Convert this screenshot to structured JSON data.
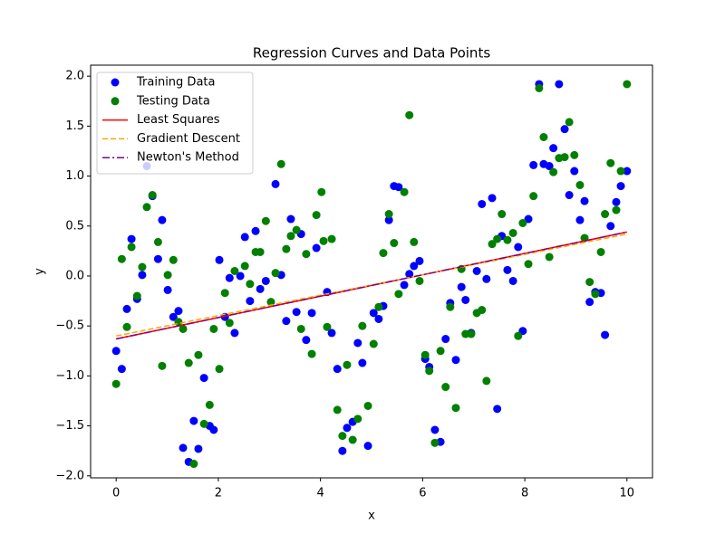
{
  "chart_data": {
    "type": "scatter",
    "title": "Regression Curves and Data Points",
    "x_label": "x",
    "y_label": "y",
    "xlim": [
      -0.5,
      10.5
    ],
    "ylim": [
      -2.02,
      2.11
    ],
    "xticks": [
      0,
      2,
      4,
      6,
      8,
      10
    ],
    "yticks": [
      {
        "value": -2,
        "label": "−2.0"
      },
      {
        "value": -1.5,
        "label": "−1.5"
      },
      {
        "value": -1,
        "label": "−1.0"
      },
      {
        "value": -0.5,
        "label": "−0.5"
      },
      {
        "value": 0,
        "label": "0.0"
      },
      {
        "value": 0.5,
        "label": "0.5"
      },
      {
        "value": 1,
        "label": "1.0"
      },
      {
        "value": 1.5,
        "label": "1.5"
      },
      {
        "value": 2,
        "label": "2.0"
      }
    ],
    "legend": "upper left",
    "series": [
      {
        "name": "Training Data",
        "color": "#0000ff",
        "style": "marker",
        "x": [
          0,
          0.11,
          0.21,
          0.3,
          0.41,
          0.51,
          0.6,
          0.71,
          0.82,
          0.9,
          1.01,
          1.12,
          1.22,
          1.31,
          1.42,
          1.52,
          1.61,
          1.72,
          1.83,
          1.91,
          2.02,
          2.13,
          2.22,
          2.32,
          2.43,
          2.52,
          2.62,
          2.73,
          2.82,
          2.93,
          3.12,
          3.23,
          3.33,
          3.42,
          3.53,
          3.62,
          3.72,
          3.83,
          3.92,
          4.13,
          4.22,
          4.33,
          4.43,
          4.52,
          4.63,
          4.73,
          4.82,
          4.93,
          5.04,
          5.14,
          5.23,
          5.34,
          5.44,
          5.53,
          5.64,
          5.74,
          5.83,
          5.94,
          6.05,
          6.13,
          6.24,
          6.35,
          6.45,
          6.54,
          6.65,
          6.76,
          6.84,
          6.95,
          7.06,
          7.16,
          7.25,
          7.36,
          7.46,
          7.55,
          7.66,
          7.77,
          7.87,
          7.96,
          8.07,
          8.17,
          8.28,
          8.37,
          8.48,
          8.56,
          8.67,
          8.78,
          8.87,
          8.97,
          9.08,
          9.17,
          9.27,
          9.38,
          9.49,
          9.57,
          9.68,
          9.79,
          9.88,
          10
        ],
        "values": [
          -0.75,
          -0.93,
          -0.33,
          0.37,
          -0.23,
          0.01,
          1.1,
          0.8,
          0.17,
          0.56,
          -0.14,
          -0.41,
          -0.35,
          -1.72,
          -1.86,
          -1.45,
          -1.73,
          -1.02,
          -1.5,
          -1.54,
          0.16,
          -0.41,
          -0.02,
          -0.57,
          0,
          0.39,
          -0.25,
          0.45,
          -0.13,
          -0.05,
          0.92,
          0.01,
          -0.45,
          0.57,
          -0.36,
          0.42,
          -0.64,
          -0.37,
          0.28,
          -0.16,
          -0.57,
          -0.93,
          -1.75,
          -1.52,
          -1.46,
          -0.67,
          -0.87,
          -1.7,
          -0.37,
          -0.43,
          -0.3,
          0.56,
          0.9,
          0.89,
          -0.09,
          0.02,
          0.1,
          0.15,
          -0.83,
          -0.91,
          -1.54,
          -1.66,
          -0.63,
          -0.27,
          -0.84,
          -0.11,
          -0.24,
          -0.57,
          0.05,
          0.72,
          -0.03,
          0.78,
          -1.33,
          0.4,
          0.06,
          -0.05,
          0.29,
          -0.55,
          0.57,
          1.11,
          1.92,
          1.12,
          1.1,
          1.28,
          1.92,
          1.47,
          0.81,
          1.05,
          0.56,
          0.75,
          -0.26,
          -0.16,
          -0.17,
          -0.59,
          0.5,
          0.74,
          0.9,
          1.05
        ]
      },
      {
        "name": "Testing Data",
        "color": "#008000",
        "style": "marker",
        "x": [
          0,
          0.11,
          0.21,
          0.3,
          0.41,
          0.51,
          0.6,
          0.71,
          0.82,
          0.9,
          1.01,
          1.12,
          1.22,
          1.31,
          1.42,
          1.52,
          1.61,
          1.72,
          1.83,
          1.91,
          2.02,
          2.13,
          2.22,
          2.32,
          2.52,
          2.62,
          2.73,
          2.82,
          2.93,
          3.03,
          3.12,
          3.23,
          3.33,
          3.42,
          3.53,
          3.62,
          3.72,
          3.83,
          3.92,
          4.02,
          4.06,
          4.13,
          4.22,
          4.33,
          4.43,
          4.52,
          4.63,
          4.73,
          4.82,
          4.93,
          5.04,
          5.14,
          5.23,
          5.34,
          5.44,
          5.53,
          5.64,
          5.74,
          5.83,
          5.94,
          6.05,
          6.13,
          6.24,
          6.35,
          6.45,
          6.54,
          6.65,
          6.76,
          6.84,
          6.95,
          7.06,
          7.16,
          7.25,
          7.36,
          7.46,
          7.55,
          7.66,
          7.77,
          7.87,
          7.96,
          8.07,
          8.17,
          8.28,
          8.37,
          8.48,
          8.56,
          8.67,
          8.78,
          8.87,
          8.97,
          9.08,
          9.17,
          9.27,
          9.38,
          9.49,
          9.57,
          9.68,
          9.79,
          9.88,
          10
        ],
        "values": [
          -1.08,
          0.17,
          -0.51,
          0.29,
          -0.2,
          0.09,
          0.69,
          0.81,
          0.34,
          -0.9,
          0.01,
          0.16,
          -0.46,
          -0.53,
          -0.87,
          -1.88,
          -0.79,
          -1.48,
          -1.29,
          -0.53,
          -0.93,
          -0.17,
          -0.47,
          0.05,
          0.1,
          -0.08,
          0.24,
          0.24,
          0.55,
          -0.26,
          0.03,
          1.12,
          0.27,
          0.4,
          0.46,
          -0.53,
          0.22,
          -0.78,
          0.61,
          0.84,
          0.35,
          -0.51,
          0.37,
          -1.34,
          -1.6,
          -0.89,
          -1.64,
          -1.43,
          -0.5,
          -1.3,
          -0.68,
          -0.31,
          0.23,
          0.62,
          0.33,
          -0.18,
          0.84,
          1.61,
          0.34,
          -0.05,
          -0.79,
          -0.95,
          -1.67,
          -0.75,
          -1.11,
          -0.31,
          -1.32,
          0.07,
          -0.58,
          -0.58,
          -0.37,
          -0.34,
          -1.05,
          0.32,
          0.37,
          0.62,
          0.36,
          0.43,
          -0.6,
          0.53,
          0.12,
          0.8,
          1.88,
          1.39,
          0.19,
          1.04,
          1.18,
          1.19,
          1.54,
          1.21,
          0.91,
          0.38,
          -0.06,
          -0.18,
          0.24,
          0.62,
          1.13,
          0.66,
          1.05,
          1.92
        ]
      },
      {
        "name": "Least Squares",
        "color": "#ff0000",
        "style": "solid",
        "x": [
          0,
          10
        ],
        "values": [
          -0.63,
          0.44
        ]
      },
      {
        "name": "Gradient Descent",
        "color": "#ffa500",
        "style": "dashed",
        "x": [
          0,
          10
        ],
        "values": [
          -0.6,
          0.42
        ]
      },
      {
        "name": "Newton's Method",
        "color": "#800080",
        "style": "dashdot",
        "x": [
          0,
          10
        ],
        "values": [
          -0.63,
          0.44
        ]
      }
    ]
  }
}
